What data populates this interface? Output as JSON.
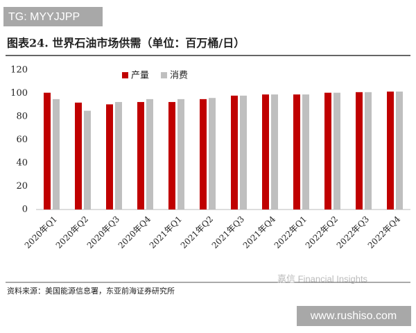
{
  "chart_data": {
    "type": "bar",
    "title": "图表24. 世界石油市场供需（单位：百万桶/日）",
    "categories": [
      "2020年Q1",
      "2020年Q2",
      "2020年Q3",
      "2020年Q4",
      "2021年Q1",
      "2021年Q2",
      "2021年Q3",
      "2021年Q4",
      "2022年Q1",
      "2022年Q2",
      "2022年Q3",
      "2022年Q4"
    ],
    "series": [
      {
        "name": "产量",
        "color": "#c00000",
        "values": [
          100.5,
          92,
          90.5,
          92.5,
          92.5,
          95,
          98,
          99,
          99,
          100.5,
          101,
          101.5
        ]
      },
      {
        "name": "消费",
        "color": "#bfbfbf",
        "values": [
          95,
          85,
          92.5,
          95,
          95,
          96,
          98,
          99,
          99,
          100.5,
          101,
          101.5
        ]
      }
    ],
    "ylim": [
      0,
      120
    ],
    "yticks": [
      0,
      20,
      40,
      60,
      80,
      100,
      120
    ],
    "grid": false,
    "source": "资料来源：美国能源信息署，东亚前海证券研究所"
  },
  "watermarks": {
    "top": "TG: MYYJJPP",
    "logo": "嘉信 Financial Insights",
    "site": "www.rushiso.com"
  }
}
